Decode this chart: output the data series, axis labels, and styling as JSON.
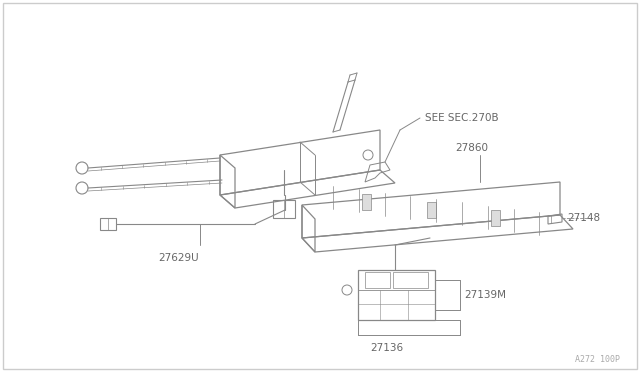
{
  "background_color": "#ffffff",
  "line_color": "#888888",
  "text_color": "#666666",
  "watermark": "A272 100P",
  "labels": {
    "SEE_SEC_270B": "SEE SEC.270B",
    "27860": "27860",
    "27148": "27148",
    "27629U": "27629U",
    "27139M": "27139M",
    "27136": "27136"
  }
}
